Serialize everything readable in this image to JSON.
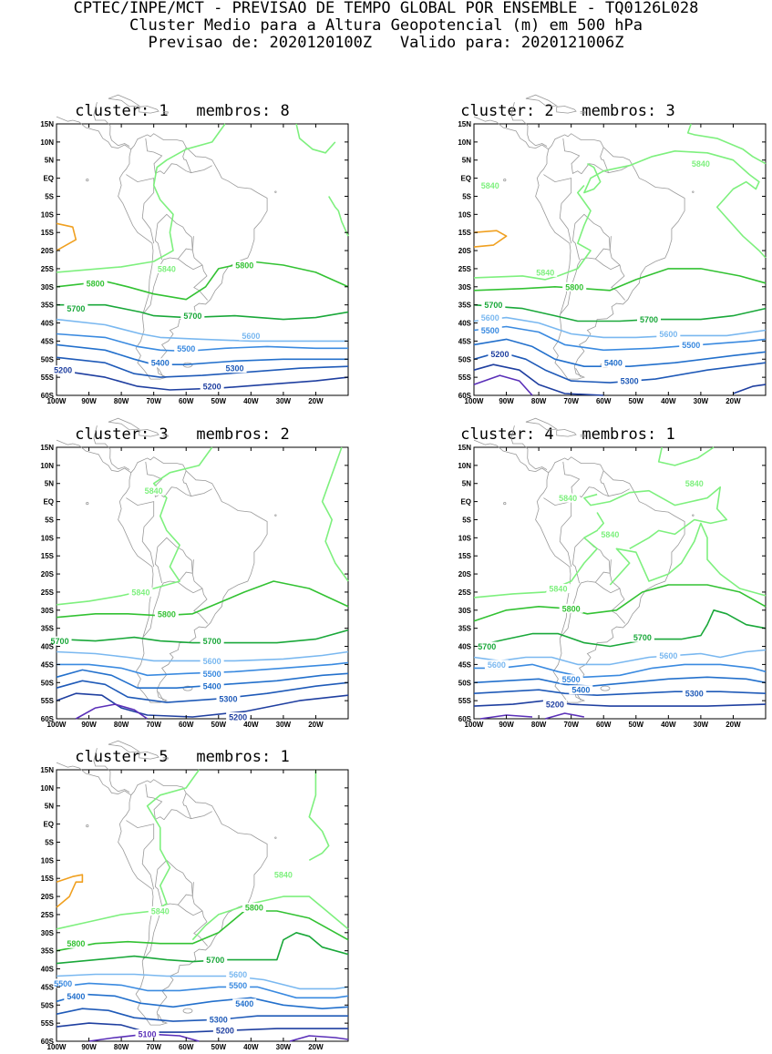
{
  "header": {
    "line1": "CPTEC/INPE/MCT - PREVISAO DE TEMPO GLOBAL POR ENSEMBLE - TQ0126L028",
    "line2": "Cluster Medio para a Altura Geopotencial (m) em 500 hPa",
    "line3": "Previsao de: 2020120100Z   Valido para: 2020121006Z"
  },
  "axes": {
    "lat_labels": [
      "15N",
      "10N",
      "5N",
      "EQ",
      "5S",
      "10S",
      "15S",
      "20S",
      "25S",
      "30S",
      "35S",
      "40S",
      "45S",
      "50S",
      "55S",
      "60S"
    ],
    "lon_labels": [
      "100W",
      "90W",
      "80W",
      "70W",
      "60W",
      "50W",
      "40W",
      "30W",
      "20W"
    ]
  },
  "colors": {
    "c5100": "#5a2fb8",
    "c5200": "#1f3fa0",
    "c5300": "#1f5ab8",
    "c5400": "#2370cc",
    "c5500": "#3a8ae0",
    "c5600": "#7ab8f0",
    "c5700": "#1aa83a",
    "c5800": "#33c233",
    "c5840": "#7ef07e",
    "c5880": "#f0a020",
    "coast": "#9a9a9a"
  },
  "panels": [
    {
      "title": "cluster: 1   membros: 8",
      "labels": [
        "5840",
        "5800",
        "5800",
        "5700",
        "5700",
        "5600",
        "5500",
        "5400",
        "5300",
        "5200",
        "5200"
      ]
    },
    {
      "title": "cluster: 2   membros: 3",
      "labels": [
        "5840",
        "5840",
        "5840",
        "5800",
        "5700",
        "5700",
        "5600",
        "5600",
        "5500",
        "5500",
        "5400",
        "5300",
        "5200"
      ]
    },
    {
      "title": "cluster: 3   membros: 2",
      "labels": [
        "5840",
        "5840",
        "5800",
        "5700",
        "5700",
        "5600",
        "5500",
        "5400",
        "5300",
        "5200"
      ]
    },
    {
      "title": "cluster: 4   membros: 1",
      "labels": [
        "5840",
        "5840",
        "5840",
        "5840",
        "5800",
        "5700",
        "5700",
        "5600",
        "5600",
        "5500",
        "5400",
        "5300",
        "5200"
      ]
    },
    {
      "title": "cluster: 5   membros: 1",
      "labels": [
        "5840",
        "5840",
        "5800",
        "5800",
        "5700",
        "5600",
        "5500",
        "5500",
        "5400",
        "5400",
        "5300",
        "5200",
        "5100"
      ]
    }
  ]
}
